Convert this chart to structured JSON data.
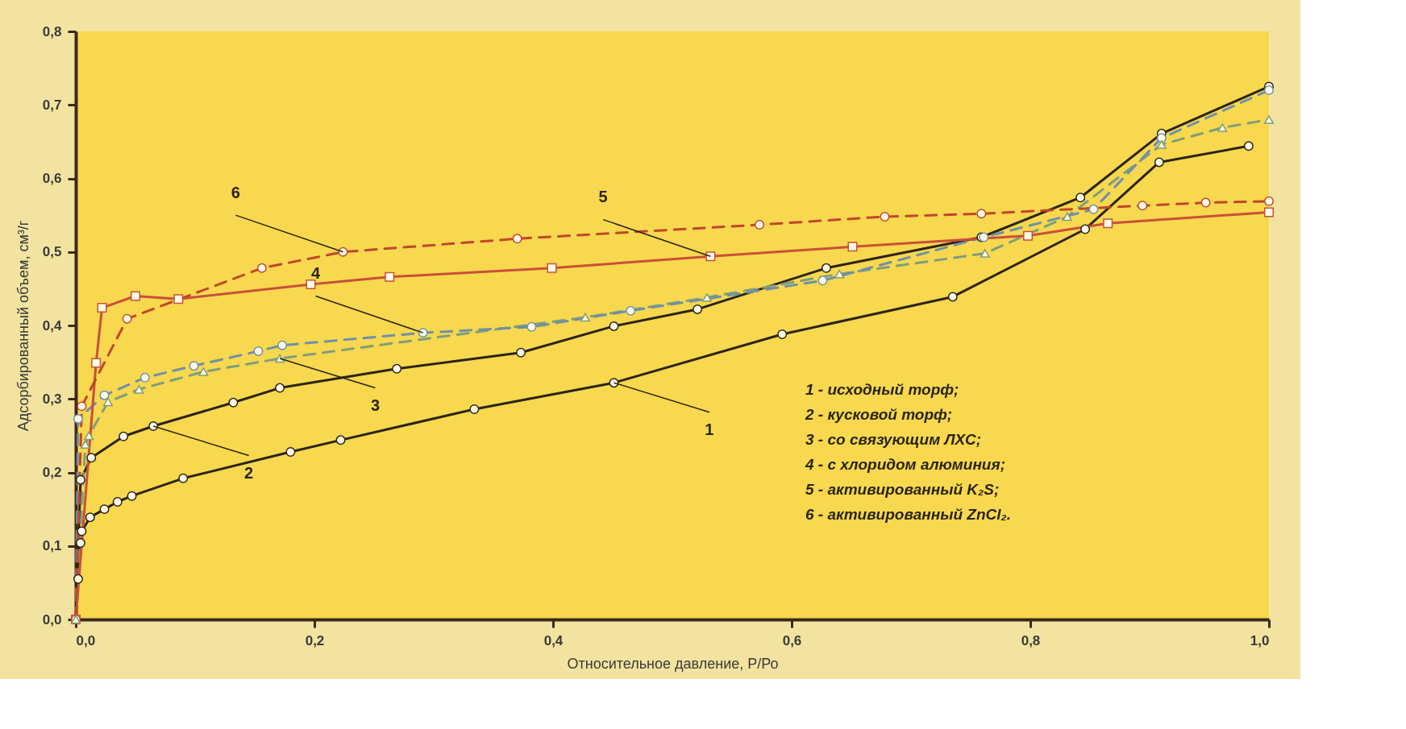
{
  "chart_data": {
    "type": "line",
    "xlabel": "Относительное давление, Р/Ро",
    "ylabel": "Адсорбированный объем, см³/г",
    "xlim": [
      0,
      1
    ],
    "ylim": [
      0,
      0.8
    ],
    "xticks": [
      {
        "value": 0,
        "label": "0,0"
      },
      {
        "value": 0.2,
        "label": "0,2"
      },
      {
        "value": 0.4,
        "label": "0,4"
      },
      {
        "value": 0.6,
        "label": "0,6"
      },
      {
        "value": 0.8,
        "label": "0,8"
      },
      {
        "value": 1,
        "label": "1,0"
      }
    ],
    "yticks": [
      {
        "value": 0,
        "label": "0,0"
      },
      {
        "value": 0.1,
        "label": "0,1"
      },
      {
        "value": 0.2,
        "label": "0,2"
      },
      {
        "value": 0.3,
        "label": "0,3"
      },
      {
        "value": 0.4,
        "label": "0,4"
      },
      {
        "value": 0.5,
        "label": "0,5"
      },
      {
        "value": 0.6,
        "label": "0,6"
      },
      {
        "value": 0.7,
        "label": "0,7"
      },
      {
        "value": 0.8,
        "label": "0,8"
      }
    ],
    "grid": false,
    "series": [
      {
        "color": "#2b2418",
        "marker": "circle",
        "line_style": "solid",
        "x": [
          0,
          0.002,
          0.004,
          0.005,
          0.012,
          0.024,
          0.035,
          0.047,
          0.09,
          0.18,
          0.222,
          0.334,
          0.451,
          0.592,
          0.735,
          0.846,
          0.908,
          0.983
        ],
        "values": [
          0,
          0.055,
          0.104,
          0.12,
          0.139,
          0.15,
          0.16,
          0.168,
          0.192,
          0.228,
          0.244,
          0.286,
          0.322,
          0.388,
          0.439,
          0.531,
          0.622,
          0.644
        ]
      },
      {
        "color": "#2b2418",
        "marker": "circle",
        "line_style": "solid",
        "x": [
          0,
          0.004,
          0.013,
          0.04,
          0.065,
          0.132,
          0.171,
          0.269,
          0.373,
          0.451,
          0.521,
          0.629,
          0.759,
          0.842,
          0.91,
          1.0
        ],
        "values": [
          0,
          0.19,
          0.22,
          0.249,
          0.263,
          0.295,
          0.315,
          0.341,
          0.363,
          0.399,
          0.422,
          0.478,
          0.52,
          0.574,
          0.661,
          0.725
        ]
      },
      {
        "color": "#7f9e7c",
        "marker": "triangle",
        "line_style": "dashed",
        "x": [
          0,
          0.008,
          0.011,
          0.027,
          0.053,
          0.107,
          0.171,
          0.427,
          0.529,
          0.64,
          0.762,
          0.831,
          0.91,
          0.961,
          1.0
        ],
        "values": [
          0,
          0.238,
          0.25,
          0.296,
          0.313,
          0.337,
          0.355,
          0.411,
          0.438,
          0.47,
          0.498,
          0.548,
          0.646,
          0.669,
          0.68
        ]
      },
      {
        "color": "#6f90a8",
        "marker": "circle",
        "line_style": "dashed",
        "x": [
          0,
          0.002,
          0.024,
          0.058,
          0.099,
          0.153,
          0.173,
          0.291,
          0.382,
          0.465,
          0.626,
          0.761,
          0.853,
          0.91,
          1.0
        ],
        "values": [
          0,
          0.273,
          0.305,
          0.329,
          0.345,
          0.365,
          0.373,
          0.39,
          0.398,
          0.42,
          0.461,
          0.52,
          0.558,
          0.655,
          0.72
        ]
      },
      {
        "color": "#c8503a",
        "marker": "square",
        "line_style": "solid",
        "x": [
          0,
          0.017,
          0.022,
          0.05,
          0.086,
          0.197,
          0.263,
          0.399,
          0.532,
          0.651,
          0.798,
          0.865,
          1.0
        ],
        "values": [
          0,
          0.349,
          0.424,
          0.44,
          0.436,
          0.456,
          0.466,
          0.478,
          0.494,
          0.507,
          0.522,
          0.539,
          0.554
        ]
      },
      {
        "color": "#c0472a",
        "marker": "circle",
        "line_style": "dashed",
        "x": [
          0,
          0.005,
          0.043,
          0.156,
          0.224,
          0.37,
          0.573,
          0.678,
          0.759,
          0.894,
          0.947,
          1.0
        ],
        "values": [
          0,
          0.29,
          0.409,
          0.478,
          0.5,
          0.518,
          0.537,
          0.548,
          0.552,
          0.563,
          0.567,
          0.569
        ]
      }
    ],
    "annotations": [
      {
        "text": "1",
        "x": 0.451,
        "y": 0.322
      },
      {
        "text": "2",
        "x": 0.065,
        "y": 0.263
      },
      {
        "text": "3",
        "x": 0.171,
        "y": 0.355
      },
      {
        "text": "4",
        "x": 0.291,
        "y": 0.39
      },
      {
        "text": "5",
        "x": 0.532,
        "y": 0.494
      },
      {
        "text": "6",
        "x": 0.224,
        "y": 0.5
      },
      "1 - исходный торф;",
      "2 - кусковой торф;",
      "3 - со связующим ЛХС;",
      "4 - с хлоридом алюминия;",
      "5 - активированный K₂S;",
      "6 - активированный ZnCl₂."
    ]
  }
}
